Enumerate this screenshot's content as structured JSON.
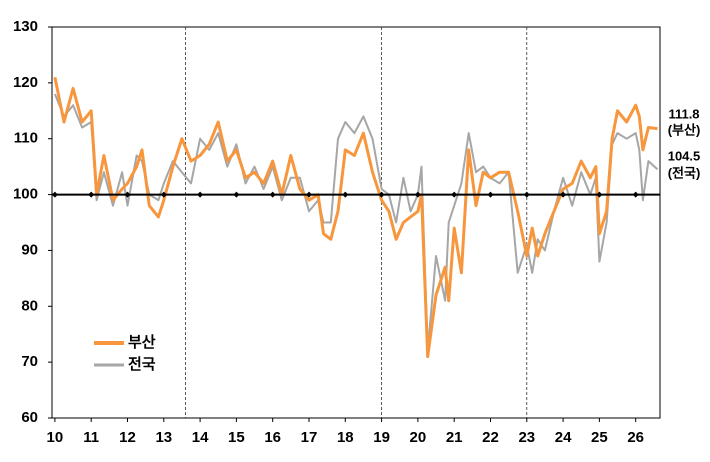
{
  "chart_data": {
    "type": "line",
    "x": [
      10.0,
      10.25,
      10.5,
      10.75,
      11.0,
      11.15,
      11.35,
      11.6,
      11.85,
      12.0,
      12.25,
      12.4,
      12.6,
      12.85,
      13.0,
      13.25,
      13.5,
      13.75,
      14.0,
      14.25,
      14.5,
      14.75,
      15.0,
      15.25,
      15.5,
      15.75,
      16.0,
      16.25,
      16.5,
      16.75,
      17.0,
      17.25,
      17.4,
      17.6,
      17.8,
      18.0,
      18.25,
      18.5,
      18.75,
      19.0,
      19.2,
      19.4,
      19.6,
      19.8,
      20.0,
      20.1,
      20.27,
      20.5,
      20.75,
      20.85,
      21.0,
      21.2,
      21.4,
      21.6,
      21.8,
      22.0,
      22.25,
      22.5,
      22.75,
      23.0,
      23.15,
      23.3,
      23.5,
      23.75,
      24.0,
      24.25,
      24.5,
      24.75,
      24.9,
      25.0,
      25.2,
      25.35,
      25.5,
      25.75,
      26.0,
      26.1,
      26.2,
      26.35,
      26.6
    ],
    "series": [
      {
        "name": "부산",
        "color": "#f7963d",
        "values": [
          121,
          113,
          119,
          113,
          115,
          100,
          107,
          99,
          101,
          102,
          105,
          108,
          98,
          96,
          99,
          105,
          110,
          106,
          107,
          109,
          113,
          106,
          108,
          103,
          104,
          102,
          106,
          100,
          107,
          101,
          99,
          100,
          93,
          92,
          97,
          108,
          107,
          111,
          104,
          99,
          97,
          92,
          95,
          96,
          97,
          100,
          71,
          82,
          87,
          81,
          94,
          86,
          108,
          98,
          104,
          103,
          104,
          104,
          97,
          89,
          94,
          89,
          93,
          97,
          101,
          102,
          106,
          103,
          105,
          93,
          97,
          110,
          115,
          113,
          116,
          114,
          108,
          112,
          111.8
        ]
      },
      {
        "name": "전국",
        "color": "#a6a6a6",
        "values": [
          118,
          114,
          116,
          112,
          113,
          99,
          104,
          98,
          104,
          98,
          107,
          106,
          100,
          99,
          102,
          106,
          104,
          102,
          110,
          108,
          111,
          105,
          109,
          102,
          105,
          101,
          105,
          99,
          103,
          103,
          97,
          99,
          95,
          95,
          110,
          113,
          111,
          114,
          110,
          101,
          100,
          95,
          103,
          97,
          100,
          105,
          72,
          89,
          81,
          95,
          98,
          102,
          111,
          104,
          105,
          103,
          102,
          104,
          86,
          91,
          86,
          92,
          90,
          97,
          103,
          98,
          104,
          100,
          103,
          88,
          95,
          109,
          111,
          110,
          111,
          108,
          99,
          106,
          104.5
        ]
      }
    ],
    "xlim": [
      9.92,
      26.67
    ],
    "xticks": [
      10,
      11,
      12,
      13,
      14,
      15,
      16,
      17,
      18,
      19,
      20,
      21,
      22,
      23,
      24,
      25,
      26
    ],
    "ylim": [
      60,
      130
    ],
    "yticks": [
      60,
      70,
      80,
      90,
      100,
      110,
      120,
      130
    ],
    "reference_line": 100,
    "vlines": [
      13.6,
      19,
      23
    ],
    "annotations": [
      "111.8",
      "(부산)",
      "104.5",
      "(전국)"
    ],
    "legend": "lower left"
  }
}
